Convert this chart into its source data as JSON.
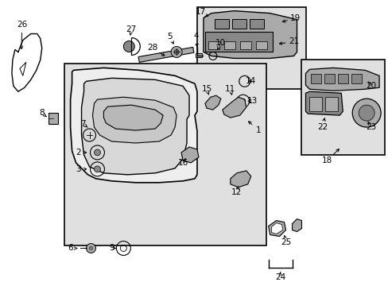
{
  "bg_color": "#ffffff",
  "fig_width": 4.89,
  "fig_height": 3.6,
  "dpi": 100,
  "line_color": "#000000",
  "gray_fill": "#d8d8d8",
  "dark_gray": "#888888",
  "mid_gray": "#aaaaaa",
  "light_gray": "#eeeeee",
  "inset_fill": "#e0e0e0",
  "label_fs": 7.5,
  "small_fs": 6.5
}
